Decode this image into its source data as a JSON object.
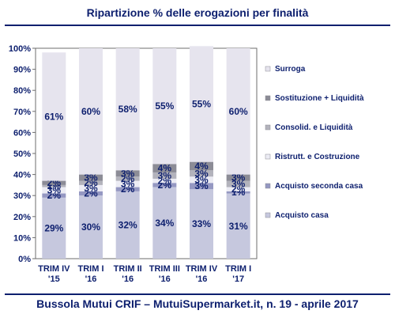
{
  "title": "Ripartizione % delle erogazioni per finalità",
  "footer": "Bussola Mutui CRIF – MutuiSupermarket.it, n. 19 - aprile 2017",
  "colors": {
    "text": "#0d1f6e",
    "Surroga": "#e6e4ee",
    "Sostituzione + Liquidità": "#8c8c96",
    "Consolid. e Liquidità": "#b3b3bc",
    "Ristrutt. e Costruzione": "#ececf4",
    "Acquisto seconda casa": "#9598c2",
    "Acquisto casa": "#c6c8de"
  },
  "chart_data": {
    "type": "bar",
    "stacked": true,
    "title": "Ripartizione % delle erogazioni per finalità",
    "categories": [
      [
        "TRIM IV",
        "'15"
      ],
      [
        "TRIM I",
        "'16"
      ],
      [
        "TRIM II",
        "'16"
      ],
      [
        "TRIM III",
        "'16"
      ],
      [
        "TRIM IV",
        "'16"
      ],
      [
        "TRIM I",
        "'17"
      ]
    ],
    "ylim": [
      0,
      100
    ],
    "yticks": [
      "0%",
      "10%",
      "20%",
      "30%",
      "40%",
      "50%",
      "60%",
      "70%",
      "80%",
      "90%",
      "100%"
    ],
    "legend_position": "right",
    "series": [
      {
        "name": "Acquisto casa",
        "values": [
          29,
          30,
          32,
          34,
          33,
          31
        ],
        "labels": [
          "29%",
          "30%",
          "32%",
          "34%",
          "33%",
          "31%"
        ]
      },
      {
        "name": "Acquisto seconda casa",
        "values": [
          2,
          2,
          2,
          2,
          3,
          1
        ],
        "labels": [
          "2%",
          "2%",
          "2%",
          "2%",
          "3%",
          "1%"
        ]
      },
      {
        "name": "Ristrutt. e Costruzione",
        "values": [
          3,
          3,
          3,
          2,
          3,
          2
        ],
        "labels": [
          "3%",
          "3%",
          "3%",
          "2%",
          "3%",
          "2%"
        ]
      },
      {
        "name": "Consolid. e Liquidità",
        "values": [
          1,
          2,
          2,
          3,
          3,
          3
        ],
        "labels": [
          "1%",
          "2%",
          "2%",
          "3%",
          "3%",
          "3%"
        ]
      },
      {
        "name": "Sostituzione + Liquidità",
        "values": [
          2,
          3,
          3,
          4,
          4,
          3
        ],
        "labels": [
          "2%",
          "3%",
          "3%",
          "4%",
          "4%",
          "3%"
        ]
      },
      {
        "name": "Surroga",
        "values": [
          61,
          60,
          58,
          55,
          55,
          60
        ],
        "labels": [
          "61%",
          "60%",
          "58%",
          "55%",
          "55%",
          "60%"
        ]
      }
    ],
    "legend": [
      "Surroga",
      "Sostituzione + Liquidità",
      "Consolid. e Liquidità",
      "Ristrutt. e Costruzione",
      "Acquisto seconda casa",
      "Acquisto casa"
    ]
  }
}
